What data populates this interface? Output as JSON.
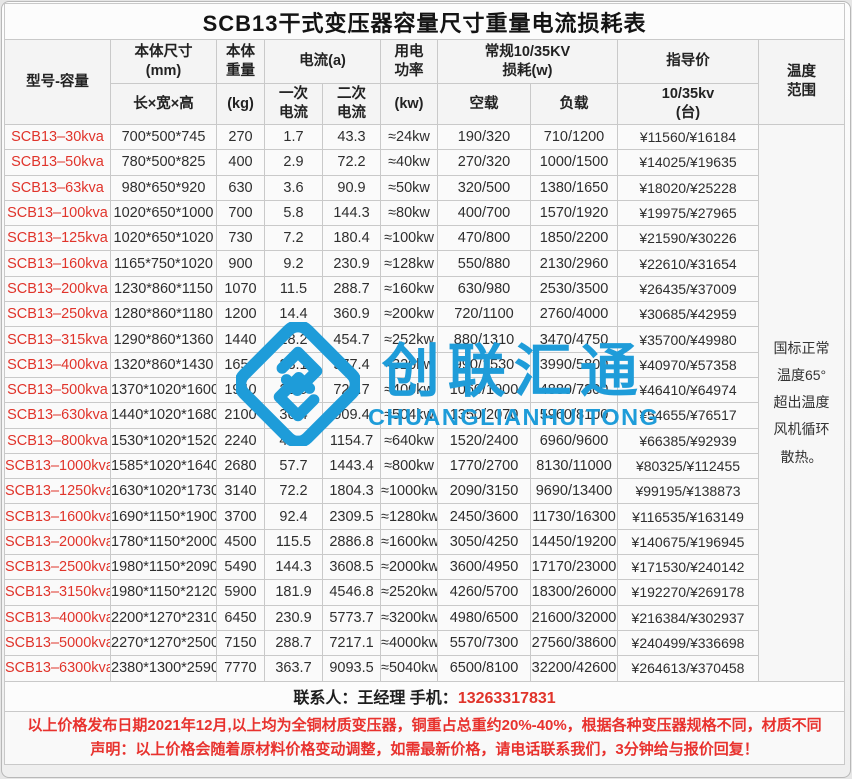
{
  "title": "SCB13干式变压器容量尺寸重量电流损耗表",
  "header": {
    "model": "型号-容量",
    "size_top": "本体尺寸\n(mm)",
    "size_sub": "长×宽×高",
    "weight_top": "本体\n重量",
    "weight_sub": "(kg)",
    "current_top": "电流(a)",
    "current_primary": "一次\n电流",
    "current_secondary": "二次\n电流",
    "power_top": "用电\n功率",
    "power_sub": "(kw)",
    "loss_top": "常规10/35KV\n损耗(w)",
    "loss_noload": "空载",
    "loss_load": "负载",
    "price_top": "指导价",
    "price_sub": "10/35kv\n(台)",
    "temp": "温度\n范围"
  },
  "rows": [
    [
      "SCB13–30kva",
      "700*500*745",
      "270",
      "1.7",
      "43.3",
      "≈24kw",
      "190/320",
      "710/1200",
      "¥11560/¥16184"
    ],
    [
      "SCB13–50kva",
      "780*500*825",
      "400",
      "2.9",
      "72.2",
      "≈40kw",
      "270/320",
      "1000/1500",
      "¥14025/¥19635"
    ],
    [
      "SCB13–63kva",
      "980*650*920",
      "630",
      "3.6",
      "90.9",
      "≈50kw",
      "320/500",
      "1380/1650",
      "¥18020/¥25228"
    ],
    [
      "SCB13–100kva",
      "1020*650*1000",
      "700",
      "5.8",
      "144.3",
      "≈80kw",
      "400/700",
      "1570/1920",
      "¥19975/¥27965"
    ],
    [
      "SCB13–125kva",
      "1020*650*1020",
      "730",
      "7.2",
      "180.4",
      "≈100kw",
      "470/800",
      "1850/2200",
      "¥21590/¥30226"
    ],
    [
      "SCB13–160kva",
      "1165*750*1020",
      "900",
      "9.2",
      "230.9",
      "≈128kw",
      "550/880",
      "2130/2960",
      "¥22610/¥31654"
    ],
    [
      "SCB13–200kva",
      "1230*860*1150",
      "1070",
      "11.5",
      "288.7",
      "≈160kw",
      "630/980",
      "2530/3500",
      "¥26435/¥37009"
    ],
    [
      "SCB13–250kva",
      "1280*860*1180",
      "1200",
      "14.4",
      "360.9",
      "≈200kw",
      "720/1100",
      "2760/4000",
      "¥30685/¥42959"
    ],
    [
      "SCB13–315kva",
      "1290*860*1360",
      "1440",
      "18.2",
      "454.7",
      "≈252kw",
      "880/1310",
      "3470/4750",
      "¥35700/¥49980"
    ],
    [
      "SCB13–400kva",
      "1320*860*1430",
      "1650",
      "23.1",
      "577.4",
      "≈320kw",
      "990/1530",
      "3990/5800",
      "¥40970/¥57358"
    ],
    [
      "SCB13–500kva",
      "1370*1020*1600",
      "1940",
      "28.9",
      "721.7",
      "≈400kw",
      "1060/1900",
      "4880/7300",
      "¥46410/¥64974"
    ],
    [
      "SCB13–630kva",
      "1440*1020*1680",
      "2100",
      "36.4",
      "909.4",
      "≈504kw",
      "1350/2070",
      "5960/8100",
      "¥54655/¥76517"
    ],
    [
      "SCB13–800kva",
      "1530*1020*1520",
      "2240",
      "46.2",
      "1154.7",
      "≈640kw",
      "1520/2400",
      "6960/9600",
      "¥66385/¥92939"
    ],
    [
      "SCB13–1000kva",
      "1585*1020*1640",
      "2680",
      "57.7",
      "1443.4",
      "≈800kw",
      "1770/2700",
      "8130/11000",
      "¥80325/¥112455"
    ],
    [
      "SCB13–1250kva",
      "1630*1020*1730",
      "3140",
      "72.2",
      "1804.3",
      "≈1000kw",
      "2090/3150",
      "9690/13400",
      "¥99195/¥138873"
    ],
    [
      "SCB13–1600kva",
      "1690*1150*1900",
      "3700",
      "92.4",
      "2309.5",
      "≈1280kw",
      "2450/3600",
      "11730/16300",
      "¥116535/¥163149"
    ],
    [
      "SCB13–2000kva",
      "1780*1150*2000",
      "4500",
      "115.5",
      "2886.8",
      "≈1600kw",
      "3050/4250",
      "14450/19200",
      "¥140675/¥196945"
    ],
    [
      "SCB13–2500kva",
      "1980*1150*2090",
      "5490",
      "144.3",
      "3608.5",
      "≈2000kw",
      "3600/4950",
      "17170/23000",
      "¥171530/¥240142"
    ],
    [
      "SCB13–3150kva",
      "1980*1150*2120",
      "5900",
      "181.9",
      "4546.8",
      "≈2520kw",
      "4260/5700",
      "18300/26000",
      "¥192270/¥269178"
    ],
    [
      "SCB13–4000kva",
      "2200*1270*2310",
      "6450",
      "230.9",
      "5773.7",
      "≈3200kw",
      "4980/6500",
      "21600/32000",
      "¥216384/¥302937"
    ],
    [
      "SCB13–5000kva",
      "2270*1270*2500",
      "7150",
      "288.7",
      "7217.1",
      "≈4000kw",
      "5570/7300",
      "27560/38600",
      "¥240499/¥336698"
    ],
    [
      "SCB13–6300kva",
      "2380*1300*2590",
      "7770",
      "363.7",
      "9093.5",
      "≈5040kw",
      "6500/8100",
      "32200/42600",
      "¥264613/¥370458"
    ]
  ],
  "temperature_note": "国标正常\n温度65°\n超出温度\n风机循环\n散热。",
  "footer": {
    "contact_prefix": "联系人：王经理 手机：",
    "contact_phone": "13263317831",
    "notice_lines": [
      "以上价格发布日期2021年12月,以上均为全铜材质变压器，铜重占总重约20%-40%，根据各种变压器规格不同，材质不同",
      "声明：以上价格会随着原材料价格变动调整，如需最新价格，请电话联系我们，3分钟给与报价回复！"
    ]
  },
  "watermark": {
    "zh": "创联汇通",
    "en": "CHUANGLIANHUITONG"
  },
  "colors": {
    "model_red": "#e0342b",
    "notice_red": "#e8322e",
    "watermark_blue": "#1E9CD9",
    "border_gray": "#c9c9c9"
  }
}
